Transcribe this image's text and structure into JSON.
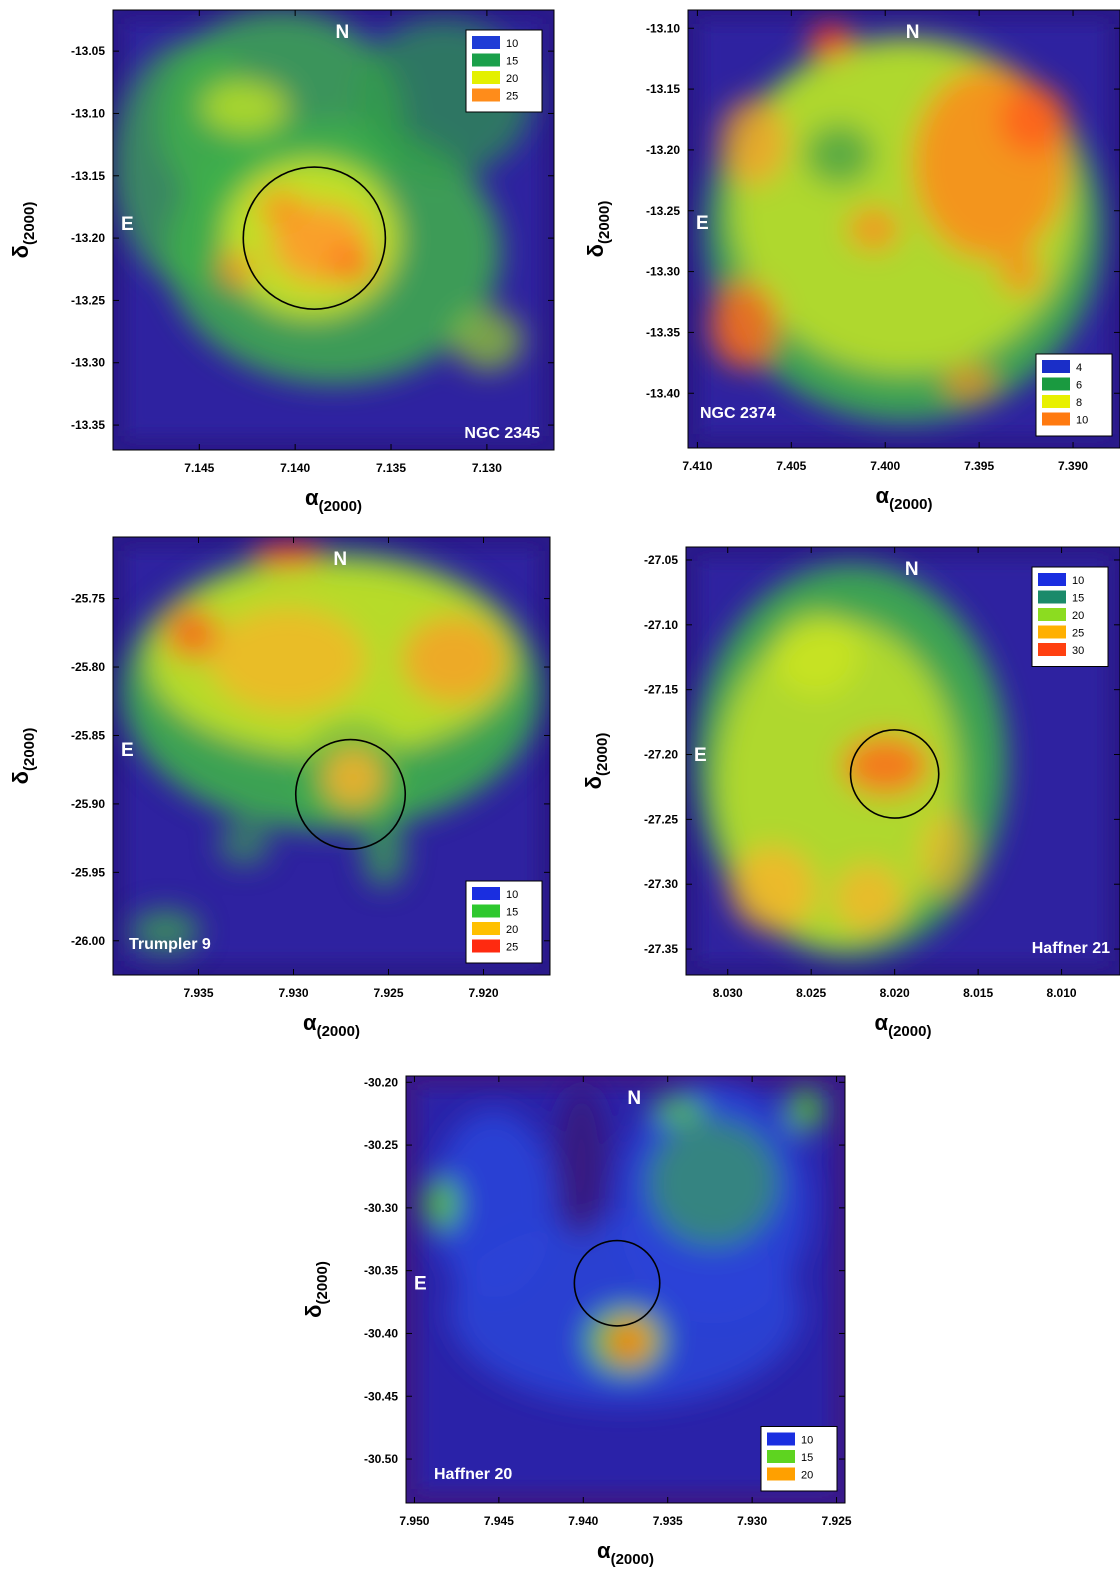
{
  "chart_data": [
    {
      "type": "heatmap",
      "title": "NGC 2345",
      "xlabel": "α(2000)",
      "ylabel": "δ(2000)",
      "xlim": [
        7.1495,
        7.1265
      ],
      "ylim": [
        -13.37,
        -13.017
      ],
      "x_ticks": [
        7.145,
        7.14,
        7.135,
        7.13
      ],
      "x_tick_labels": [
        "7.145",
        "7.140",
        "7.135",
        "7.130"
      ],
      "y_ticks": [
        -13.05,
        -13.1,
        -13.15,
        -13.2,
        -13.25,
        -13.3,
        -13.35
      ],
      "y_tick_labels": [
        "-13.05",
        "-13.10",
        "-13.15",
        "-13.20",
        "-13.25",
        "-13.30",
        "-13.35"
      ],
      "north_label": "N",
      "east_label": "E",
      "legend_position": "top-right",
      "legend": [
        {
          "value": "10",
          "color": "#1f3cd6"
        },
        {
          "value": "15",
          "color": "#1aa04a"
        },
        {
          "value": "20",
          "color": "#e4f000"
        },
        {
          "value": "25",
          "color": "#ff8c1a"
        }
      ],
      "cluster_circle": {
        "ra": 7.139,
        "dec": -13.2,
        "radius_dec": 0.057
      }
    },
    {
      "type": "heatmap",
      "title": "NGC 2374",
      "xlabel": "α(2000)",
      "ylabel": "δ(2000)",
      "xlim": [
        7.4105,
        7.3875
      ],
      "ylim": [
        -13.445,
        -13.085
      ],
      "x_ticks": [
        7.41,
        7.405,
        7.4,
        7.395,
        7.39
      ],
      "x_tick_labels": [
        "7.410",
        "7.405",
        "7.400",
        "7.395",
        "7.390"
      ],
      "y_ticks": [
        -13.1,
        -13.15,
        -13.2,
        -13.25,
        -13.3,
        -13.35,
        -13.4
      ],
      "y_tick_labels": [
        "-13.10",
        "-13.15",
        "-13.20",
        "-13.25",
        "-13.30",
        "-13.35",
        "-13.40"
      ],
      "north_label": "N",
      "east_label": "E",
      "legend_position": "bottom-right",
      "legend": [
        {
          "value": "4",
          "color": "#1a2ec8"
        },
        {
          "value": "6",
          "color": "#1a9a40"
        },
        {
          "value": "8",
          "color": "#e8f000"
        },
        {
          "value": "10",
          "color": "#ff7a10"
        }
      ]
    },
    {
      "type": "heatmap",
      "title": "Trumpler 9",
      "xlabel": "α(2000)",
      "ylabel": "δ(2000)",
      "xlim": [
        7.9395,
        7.9165
      ],
      "ylim": [
        -26.025,
        -25.705
      ],
      "x_ticks": [
        7.935,
        7.93,
        7.925,
        7.92
      ],
      "x_tick_labels": [
        "7.935",
        "7.930",
        "7.925",
        "7.920"
      ],
      "y_ticks": [
        -25.75,
        -25.8,
        -25.85,
        -25.9,
        -25.95,
        -26.0
      ],
      "y_tick_labels": [
        "-25.75",
        "-25.80",
        "-25.85",
        "-25.90",
        "-25.95",
        "-26.00"
      ],
      "north_label": "N",
      "east_label": "E",
      "legend_position": "bottom-right",
      "legend": [
        {
          "value": "10",
          "color": "#1a2ee0"
        },
        {
          "value": "15",
          "color": "#2ec82e"
        },
        {
          "value": "20",
          "color": "#ffc000"
        },
        {
          "value": "25",
          "color": "#ff2a10"
        }
      ],
      "cluster_circle": {
        "ra": 7.927,
        "dec": -25.893,
        "radius_dec": 0.04
      }
    },
    {
      "type": "heatmap",
      "title": "Haffner 21",
      "xlabel": "α(2000)",
      "ylabel": "δ(2000)",
      "xlim": [
        8.0325,
        8.0065
      ],
      "ylim": [
        -27.37,
        -27.04
      ],
      "x_ticks": [
        8.03,
        8.025,
        8.02,
        8.015,
        8.01
      ],
      "x_tick_labels": [
        "8.030",
        "8.025",
        "8.020",
        "8.015",
        "8.010"
      ],
      "y_ticks": [
        -27.05,
        -27.1,
        -27.15,
        -27.2,
        -27.25,
        -27.3,
        -27.35
      ],
      "y_tick_labels": [
        "-27.05",
        "-27.10",
        "-27.15",
        "-27.20",
        "-27.25",
        "-27.30",
        "-27.35"
      ],
      "north_label": "N",
      "east_label": "E",
      "legend_position": "top-right",
      "legend": [
        {
          "value": "10",
          "color": "#1a2ee0"
        },
        {
          "value": "15",
          "color": "#1a8a6a"
        },
        {
          "value": "20",
          "color": "#8cdc20"
        },
        {
          "value": "25",
          "color": "#ffb000"
        },
        {
          "value": "30",
          "color": "#ff4010"
        }
      ],
      "cluster_circle": {
        "ra": 8.02,
        "dec": -27.215,
        "radius_dec": 0.034
      }
    },
    {
      "type": "heatmap",
      "title": "Haffner 20",
      "xlabel": "α(2000)",
      "ylabel": "δ(2000)",
      "xlim": [
        7.9505,
        7.9245
      ],
      "ylim": [
        -30.535,
        -30.195
      ],
      "x_ticks": [
        7.95,
        7.945,
        7.94,
        7.935,
        7.93,
        7.925
      ],
      "x_tick_labels": [
        "7.950",
        "7.945",
        "7.940",
        "7.935",
        "7.930",
        "7.925"
      ],
      "y_ticks": [
        -30.2,
        -30.25,
        -30.3,
        -30.35,
        -30.4,
        -30.45,
        -30.5
      ],
      "y_tick_labels": [
        "-30.20",
        "-30.25",
        "-30.30",
        "-30.35",
        "-30.40",
        "-30.45",
        "-30.50"
      ],
      "north_label": "N",
      "east_label": "E",
      "legend_position": "bottom-right",
      "legend": [
        {
          "value": "10",
          "color": "#1a2ee0"
        },
        {
          "value": "15",
          "color": "#5ed420"
        },
        {
          "value": "20",
          "color": "#ffa000"
        }
      ],
      "cluster_circle": {
        "ra": 7.938,
        "dec": -30.36,
        "radius_dec": 0.034
      }
    }
  ]
}
